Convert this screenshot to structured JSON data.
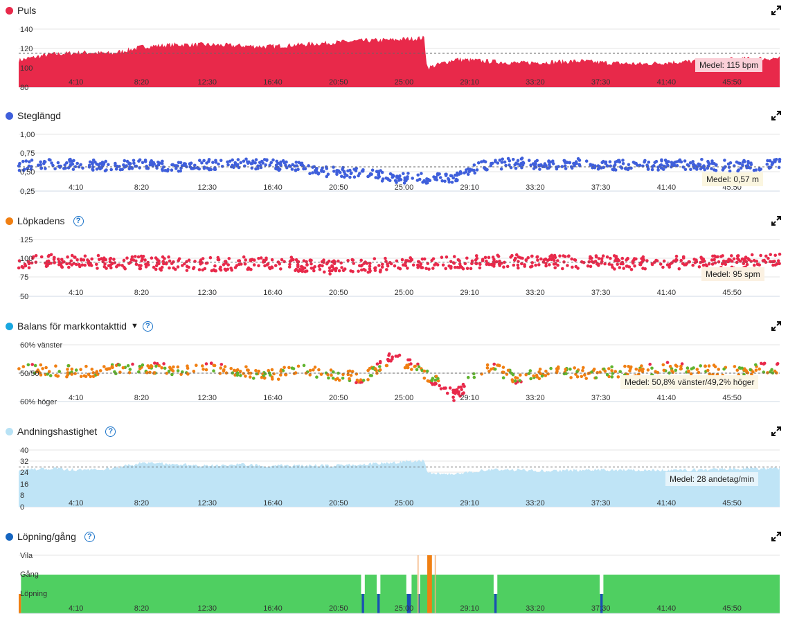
{
  "panels": {
    "puls": {
      "title": "Puls",
      "color": "#e8294a",
      "y_ticks": [
        "140",
        "120",
        "100",
        "80"
      ],
      "medel": "Medel: 115 bpm"
    },
    "steglangd": {
      "title": "Steglängd",
      "color": "#3f5fdb",
      "y_ticks": [
        "1,00",
        "0,75",
        "0,50",
        "0,25"
      ],
      "medel": "Medel: 0,57 m"
    },
    "lopkadens": {
      "title": "Löpkadens",
      "color": "#f07f12",
      "y_ticks": [
        "125",
        "100",
        "75",
        "50"
      ],
      "medel": "Medel: 95 spm"
    },
    "balans": {
      "title": "Balans för markkontakttid",
      "color": "#19a7e0",
      "y_ticks": [
        "60% vänster",
        "50/50",
        "60% höger"
      ],
      "medel": "Medel: 50,8% vänster/49,2% höger"
    },
    "andning": {
      "title": "Andningshastighet",
      "color": "#b8e2f5",
      "y_ticks": [
        "40",
        "32",
        "24",
        "16",
        "8",
        "0"
      ],
      "medel": "Medel: 28 andetag/min"
    },
    "lopning": {
      "title": "Löpning/gång",
      "color": "#1565c0",
      "y_ticks": [
        "Vila",
        "Gång",
        "Löpning"
      ]
    }
  },
  "x_ticks": [
    "4:10",
    "8:20",
    "12:30",
    "16:40",
    "20:50",
    "25:00",
    "29:10",
    "33:20",
    "37:30",
    "41:40",
    "45:50"
  ],
  "icons": {
    "help": "question-circle-icon",
    "expand": "expand-icon",
    "caret": "caret-down-icon"
  },
  "colors": {
    "red": "#e8294a",
    "blue_dot": "#3f5fdb",
    "orange": "#f07f12",
    "green": "#5fb32e",
    "breath": "#bfe4f6",
    "run_green": "#4fcf61",
    "walk_blue": "#1a4fb3"
  },
  "chart_data": [
    {
      "type": "area",
      "title": "Puls",
      "x_unit": "min",
      "xlim": [
        0,
        48.8
      ],
      "ylim": [
        80,
        140
      ],
      "grid": true,
      "series": [
        {
          "name": "Puls",
          "x": [
            0,
            2,
            4,
            6,
            8,
            10,
            12,
            14,
            16,
            18,
            20,
            22,
            24,
            26,
            26.2,
            28,
            30,
            32,
            34,
            36,
            38,
            40,
            42,
            44,
            46,
            48.8
          ],
          "values": [
            108,
            114,
            116,
            115,
            122,
            124,
            124,
            123,
            122,
            124,
            126,
            128,
            129,
            131,
            100,
            109,
            107,
            105,
            106,
            107,
            105,
            104,
            106,
            107,
            109,
            110
          ]
        }
      ],
      "average": 115
    },
    {
      "type": "scatter",
      "title": "Steglängd",
      "x_unit": "min",
      "xlim": [
        0,
        48.8
      ],
      "ylim": [
        0.25,
        1.0
      ],
      "series": [
        {
          "name": "Steglängd",
          "x": [
            0,
            2,
            4,
            6,
            8,
            10,
            12,
            14,
            16,
            18,
            20,
            22,
            24,
            26,
            28,
            30,
            32,
            34,
            36,
            38,
            40,
            42,
            44,
            46,
            48
          ],
          "values": [
            0.59,
            0.61,
            0.6,
            0.58,
            0.6,
            0.57,
            0.6,
            0.6,
            0.61,
            0.56,
            0.5,
            0.48,
            0.43,
            0.42,
            0.42,
            0.6,
            0.62,
            0.6,
            0.61,
            0.6,
            0.59,
            0.6,
            0.6,
            0.58,
            0.6
          ]
        }
      ],
      "average": 0.57
    },
    {
      "type": "scatter",
      "title": "Löpkadens",
      "x_unit": "min",
      "xlim": [
        0,
        48.8
      ],
      "ylim": [
        50,
        125
      ],
      "series": [
        {
          "name": "Löpkadens",
          "x": [
            0,
            2,
            4,
            6,
            8,
            10,
            12,
            14,
            16,
            18,
            20,
            22,
            24,
            26,
            28,
            30,
            32,
            34,
            36,
            38,
            40,
            42,
            44,
            46,
            48
          ],
          "values": [
            96,
            97,
            96,
            95,
            94,
            93,
            92,
            93,
            94,
            92,
            88,
            90,
            92,
            93,
            94,
            95,
            96,
            96,
            95,
            95,
            94,
            95,
            94,
            96,
            97
          ]
        }
      ],
      "average": 95
    },
    {
      "type": "scatter",
      "title": "Balans för markkontakttid",
      "x_unit": "min",
      "xlim": [
        0,
        48.8
      ],
      "ylim": [
        -10,
        10
      ],
      "series": [
        {
          "name": "Balans",
          "x": [
            0,
            2,
            4,
            6,
            8,
            10,
            12,
            14,
            16,
            18,
            20,
            22,
            24,
            26,
            28,
            30,
            32,
            34,
            36,
            38,
            40,
            42,
            44,
            46,
            48
          ],
          "values": [
            2,
            1,
            0.5,
            1,
            2,
            1,
            2,
            1,
            -1,
            1,
            0,
            -2,
            6,
            0,
            -8,
            3,
            -2,
            0.5,
            0,
            0.5,
            1,
            2,
            1,
            0.5,
            2
          ]
        }
      ],
      "average_text": "50,8% vänster/49,2% höger"
    },
    {
      "type": "area",
      "title": "Andningshastighet",
      "x_unit": "min",
      "xlim": [
        0,
        48.8
      ],
      "ylim": [
        0,
        40
      ],
      "series": [
        {
          "name": "Andningshastighet",
          "x": [
            0,
            2,
            4,
            6,
            8,
            10,
            12,
            14,
            16,
            18,
            20,
            22,
            24,
            26,
            26.2,
            28,
            30,
            32,
            34,
            36,
            38,
            40,
            42,
            44,
            46,
            48.8
          ],
          "values": [
            26,
            27,
            26,
            27,
            31,
            30,
            29,
            30,
            29,
            29,
            29,
            30,
            31,
            33,
            24,
            23,
            26,
            26,
            25,
            26,
            26,
            26,
            26,
            26,
            27,
            27
          ]
        }
      ],
      "average": 28
    },
    {
      "type": "bar",
      "title": "Löpning/gång",
      "x_unit": "min",
      "xlim": [
        0,
        48.8
      ],
      "categories": [
        "Vila",
        "Gång",
        "Löpning"
      ],
      "segments": [
        {
          "state": "Gång",
          "start": 0.0,
          "end": 0.15
        },
        {
          "state": "Löpning",
          "start": 0.15,
          "end": 48.8
        },
        {
          "state": "Gång",
          "start": 22.0,
          "end": 22.15
        },
        {
          "state": "Gång",
          "start": 23.0,
          "end": 23.15
        },
        {
          "state": "Gång",
          "start": 24.9,
          "end": 25.15
        },
        {
          "state": "Gång",
          "start": 25.6,
          "end": 25.7
        },
        {
          "state": "Vila",
          "start": 26.2,
          "end": 26.5
        },
        {
          "state": "Gång",
          "start": 30.5,
          "end": 30.65
        },
        {
          "state": "Gång",
          "start": 37.3,
          "end": 37.45
        }
      ]
    }
  ]
}
